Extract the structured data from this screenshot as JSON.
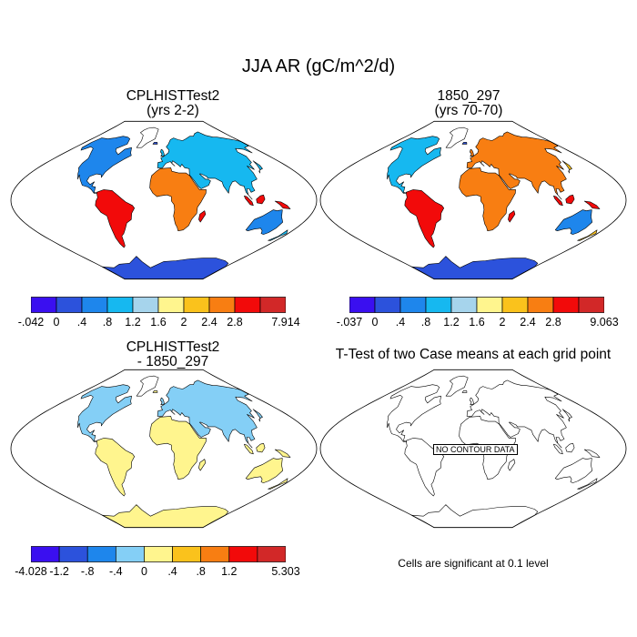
{
  "title": "JJA AR (gC/m^2/d)",
  "panels": [
    {
      "title": "CPLHISTTest2",
      "subtitle": "(yrs 2-2)",
      "field": "case1",
      "colorbar": {
        "labels": [
          "-.042",
          "0",
          ".4",
          ".8",
          "1.2",
          "1.6",
          "2",
          "2.4",
          "2.8",
          "7.914"
        ]
      }
    },
    {
      "title": "1850_297",
      "subtitle": "(yrs 70-70)",
      "field": "case2",
      "colorbar": {
        "labels": [
          "-.037",
          "0",
          ".4",
          ".8",
          "1.2",
          "1.6",
          "2",
          "2.4",
          "2.8",
          "9.063"
        ]
      }
    },
    {
      "title": "CPLHISTTest2",
      "subtitle": "- 1850_297",
      "field": "diff",
      "colorbar": {
        "labels": [
          "-4.028",
          "-1.2",
          "-.8",
          "-.4",
          "0",
          ".4",
          ".8",
          "1.2",
          "5.303"
        ]
      }
    },
    {
      "title": "T-Test of two Case means at each grid point",
      "subtitle": "",
      "field": "ttest",
      "message": "NO CONTOUR DATA"
    }
  ],
  "colors": {
    "abs_scale": [
      "#3a0ff0",
      "#2c52dc",
      "#1e86ec",
      "#16b8f0",
      "#a6d4ec",
      "#fff58e",
      "#fac21c",
      "#f87e12",
      "#f20a0a",
      "#d22828"
    ],
    "diff_scale": [
      "#3a0ff0",
      "#2c52dc",
      "#1e86ec",
      "#84cff6",
      "#fff58e",
      "#fac21c",
      "#f87e12",
      "#f20a0a",
      "#d22828"
    ]
  },
  "footnote": "Cells are significant at 0.1 level"
}
